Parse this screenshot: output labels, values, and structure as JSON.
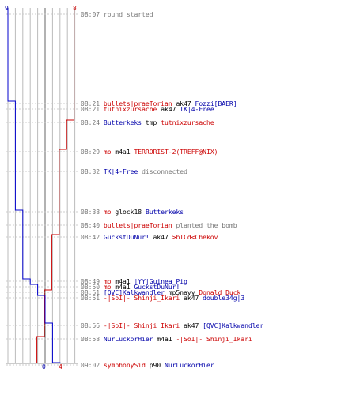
{
  "colors": {
    "ct": "#0000cc",
    "t": "#cc0000",
    "grid": "#bbbbbb",
    "axis": "#666666"
  },
  "scores": {
    "ct_start": "9",
    "t_start": "8",
    "ct_end": "0",
    "t_end": "4"
  },
  "events": [
    {
      "time": "08:07",
      "msg": "round started"
    },
    {
      "time": "08:21",
      "killer": "bullets|praeTorian",
      "weapon": "ak47",
      "victim": "Fozzi[BAER]",
      "kc": "red",
      "vc": "blue"
    },
    {
      "time": "08:21",
      "killer": "tutnixzursache",
      "weapon": "ak47",
      "victim": "TK|4-Free",
      "kc": "red",
      "vc": "blue"
    },
    {
      "time": "08:24",
      "killer": "Butterkeks",
      "weapon": "tmp",
      "victim": "tutnixzursache",
      "kc": "blue",
      "vc": "red"
    },
    {
      "time": "08:29",
      "killer": "mo",
      "weapon": "m4a1",
      "victim": "TERRORIST-2(TREFF@NIX)",
      "kc": "red",
      "vc": "red"
    },
    {
      "time": "08:32",
      "actor": "TK|4-Free",
      "ac": "blue",
      "msg": "disconnected"
    },
    {
      "time": "08:38",
      "killer": "mo",
      "weapon": "glock18",
      "victim": "Butterkeks",
      "kc": "red",
      "vc": "blue"
    },
    {
      "time": "08:40",
      "actor": "bullets|praeTorian",
      "ac": "red",
      "msg": "planted the bomb"
    },
    {
      "time": "08:42",
      "killer": "GuckstDuNur!",
      "weapon": "ak47",
      "victim": ">bTCd<Chekov",
      "kc": "blue",
      "vc": "red"
    },
    {
      "time": "08:49",
      "killer": "mo",
      "weapon": "m4a1",
      "victim": "|YY|Guinea_Pig",
      "kc": "red",
      "vc": "blue"
    },
    {
      "time": "08:50",
      "killer": "mo",
      "weapon": "m4a1",
      "victim": "GuckstDuNur!",
      "kc": "red",
      "vc": "blue"
    },
    {
      "time": "08:51",
      "killer": "[QVC]Kalkwandler",
      "weapon": "mp5navy",
      "victim": "Donald Duck",
      "kc": "blue",
      "vc": "red"
    },
    {
      "time": "08:51",
      "killer": "-|SoI|- Shinji_Ikari",
      "weapon": "ak47",
      "victim": "double34g|3",
      "kc": "red",
      "vc": "blue"
    },
    {
      "time": "08:56",
      "killer": "-|SoI|- Shinji_Ikari",
      "weapon": "ak47",
      "victim": "[QVC]Kalkwandler",
      "kc": "red",
      "vc": "blue"
    },
    {
      "time": "08:58",
      "killer": "NurLuckorHier",
      "weapon": "m4a1",
      "victim": "-|SoI|- Shinji_Ikari",
      "kc": "blue",
      "vc": "red"
    },
    {
      "time": "09:02",
      "killer": "symphonySid",
      "weapon": "p90",
      "victim": "NurLuckorHier",
      "kc": "red",
      "vc": "blue"
    }
  ]
}
